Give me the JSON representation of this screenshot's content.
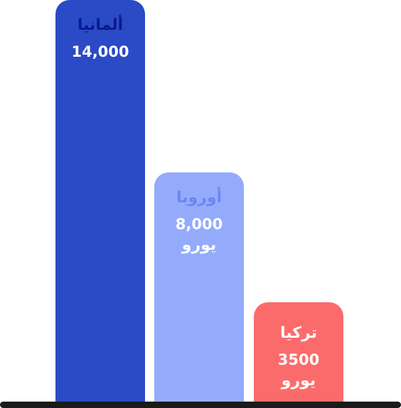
{
  "chart_data": {
    "type": "bar",
    "title": "",
    "xlabel": "",
    "ylabel": "",
    "ylim": [
      0,
      14000
    ],
    "grid": false,
    "categories": [
      "ألمانيا",
      "أوروبا",
      "تركيا"
    ],
    "values": [
      14000,
      8000,
      3500
    ],
    "value_labels": [
      "14,000",
      "8,000",
      "3500"
    ],
    "unit_labels": [
      "",
      "يورو",
      "يورو"
    ],
    "colors": [
      "#2b4ac6",
      "#94abfc",
      "#fc6b6b"
    ],
    "name_colors": [
      "#0b1a8f",
      "#6c86f0",
      "#ffffff"
    ]
  }
}
